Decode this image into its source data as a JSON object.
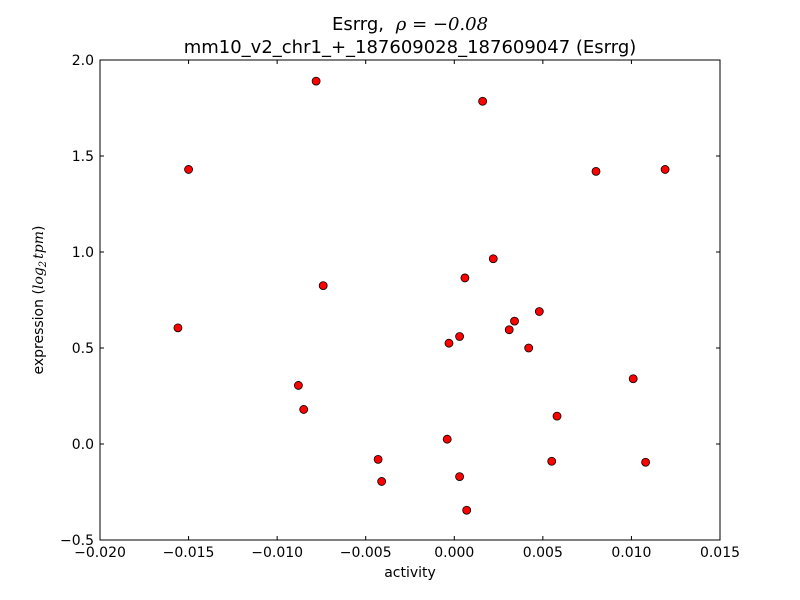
{
  "chart_data": {
    "type": "scatter",
    "title_line1_gene": "Esrrg,",
    "title_line1_math": "ρ = −0.08",
    "title_line2": "mm10_v2_chr1_+_187609028_187609047 (Esrrg)",
    "xlabel": "activity",
    "ylabel_prefix": "expression (",
    "ylabel_math_log": "log",
    "ylabel_math_sub": "2",
    "ylabel_math_tpm": "tpm",
    "ylabel_suffix": ")",
    "xlim": [
      -0.02,
      0.015
    ],
    "ylim": [
      -0.5,
      2.0
    ],
    "xticks": [
      -0.02,
      -0.015,
      -0.01,
      -0.005,
      0.0,
      0.005,
      0.01,
      0.015
    ],
    "xtick_labels": [
      "−0.020",
      "−0.015",
      "−0.010",
      "−0.005",
      "0.000",
      "0.005",
      "0.010",
      "0.015"
    ],
    "yticks": [
      -0.5,
      0.0,
      0.5,
      1.0,
      1.5,
      2.0
    ],
    "ytick_labels": [
      "−0.5",
      "0.0",
      "0.5",
      "1.0",
      "1.5",
      "2.0"
    ],
    "grid": false,
    "marker_color": "#ff0000",
    "marker_edge_color": "#000000",
    "points": [
      {
        "x": -0.0078,
        "y": 1.89
      },
      {
        "x": 0.0016,
        "y": 1.785
      },
      {
        "x": -0.015,
        "y": 1.43
      },
      {
        "x": 0.008,
        "y": 1.42
      },
      {
        "x": 0.0119,
        "y": 1.43
      },
      {
        "x": 0.0022,
        "y": 0.965
      },
      {
        "x": 0.0006,
        "y": 0.865
      },
      {
        "x": -0.0074,
        "y": 0.825
      },
      {
        "x": -0.0156,
        "y": 0.605
      },
      {
        "x": 0.0048,
        "y": 0.69
      },
      {
        "x": 0.0034,
        "y": 0.64
      },
      {
        "x": 0.0031,
        "y": 0.595
      },
      {
        "x": 0.0003,
        "y": 0.56
      },
      {
        "x": -0.0003,
        "y": 0.525
      },
      {
        "x": 0.0042,
        "y": 0.5
      },
      {
        "x": 0.0101,
        "y": 0.34
      },
      {
        "x": -0.0088,
        "y": 0.305
      },
      {
        "x": -0.0085,
        "y": 0.18
      },
      {
        "x": 0.0058,
        "y": 0.145
      },
      {
        "x": -0.0004,
        "y": 0.025
      },
      {
        "x": -0.0043,
        "y": -0.08
      },
      {
        "x": 0.0055,
        "y": -0.09
      },
      {
        "x": 0.0108,
        "y": -0.095
      },
      {
        "x": 0.0003,
        "y": -0.17
      },
      {
        "x": -0.0041,
        "y": -0.195
      },
      {
        "x": 0.0007,
        "y": -0.345
      }
    ]
  }
}
